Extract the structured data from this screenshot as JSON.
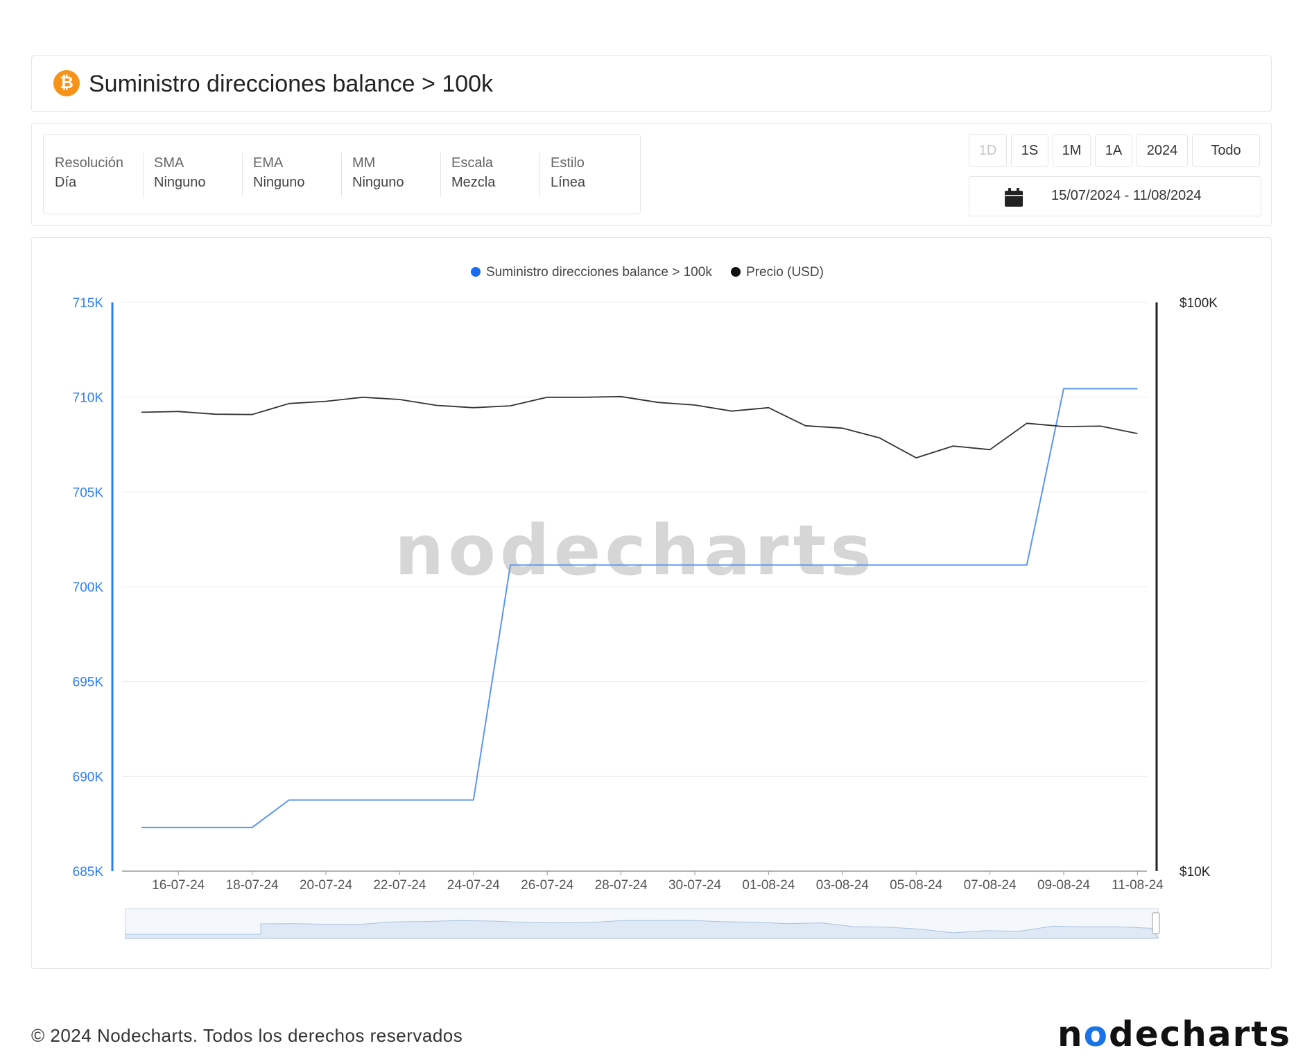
{
  "header": {
    "title": "Suministro direcciones balance > 100k",
    "coin_icon": "bitcoin-icon",
    "coin_color": "#f7931a"
  },
  "settings": [
    {
      "label": "Resolución",
      "value": "Día"
    },
    {
      "label": "SMA",
      "value": "Ninguno"
    },
    {
      "label": "EMA",
      "value": "Ninguno"
    },
    {
      "label": "MM",
      "value": "Ninguno"
    },
    {
      "label": "Escala",
      "value": "Mezcla"
    },
    {
      "label": "Estilo",
      "value": "Línea"
    }
  ],
  "range_buttons": [
    {
      "label": "1D",
      "disabled": true
    },
    {
      "label": "1S"
    },
    {
      "label": "1M"
    },
    {
      "label": "1A"
    },
    {
      "label": "2024"
    },
    {
      "label": "Todo"
    }
  ],
  "date_range": "15/07/2024 - 11/08/2024",
  "footer": {
    "copyright": "© 2024 Nodecharts. Todos los derechos reservados",
    "logo_before": "n",
    "logo_o": "o",
    "logo_after": "decharts"
  },
  "watermark": "nodecharts",
  "chart_data": {
    "type": "line",
    "legend_placement": "top-center",
    "grid": true,
    "x": [
      "15-07-24",
      "16-07-24",
      "17-07-24",
      "18-07-24",
      "19-07-24",
      "20-07-24",
      "21-07-24",
      "22-07-24",
      "23-07-24",
      "24-07-24",
      "25-07-24",
      "26-07-24",
      "27-07-24",
      "28-07-24",
      "29-07-24",
      "30-07-24",
      "31-07-24",
      "01-08-24",
      "02-08-24",
      "03-08-24",
      "04-08-24",
      "05-08-24",
      "06-08-24",
      "07-08-24",
      "08-08-24",
      "09-08-24",
      "10-08-24",
      "11-08-24"
    ],
    "x_tick_labels": [
      "16-07-24",
      "18-07-24",
      "20-07-24",
      "22-07-24",
      "24-07-24",
      "26-07-24",
      "28-07-24",
      "30-07-24",
      "01-08-24",
      "03-08-24",
      "05-08-24",
      "07-08-24",
      "09-08-24",
      "11-08-24"
    ],
    "y_left": {
      "ylim": [
        685000,
        715000
      ],
      "ticks": [
        "685K",
        "690K",
        "695K",
        "700K",
        "705K",
        "710K",
        "715K"
      ],
      "tick_values": [
        685000,
        690000,
        695000,
        700000,
        705000,
        710000,
        715000
      ],
      "color": "#2f7df6"
    },
    "y_right": {
      "scale": "log",
      "ylim": [
        10000,
        100000
      ],
      "ticks": [
        "$10K",
        "$100K"
      ],
      "tick_values": [
        10000,
        100000
      ],
      "color": "#222222"
    },
    "series": [
      {
        "name": "Suministro direcciones balance > 100k",
        "axis": "left",
        "color": "#5b95f0",
        "legend_color": "#1a6cf0",
        "values": [
          687300,
          687300,
          687300,
          687300,
          688750,
          688750,
          688750,
          688750,
          688750,
          688750,
          701150,
          701150,
          701150,
          701150,
          701150,
          701150,
          701150,
          701150,
          701150,
          701150,
          701150,
          701150,
          701150,
          701150,
          701150,
          710450,
          710450,
          710450
        ]
      },
      {
        "name": "Precio (USD)",
        "axis": "right",
        "color": "#333333",
        "legend_color": "#111111",
        "values": [
          64100,
          64300,
          63600,
          63500,
          66400,
          67000,
          68100,
          67500,
          65900,
          65300,
          65800,
          68100,
          68100,
          68300,
          66700,
          66000,
          64400,
          65300,
          60700,
          60100,
          57800,
          53300,
          55900,
          55100,
          61300,
          60500,
          60600,
          58800
        ]
      }
    ]
  }
}
